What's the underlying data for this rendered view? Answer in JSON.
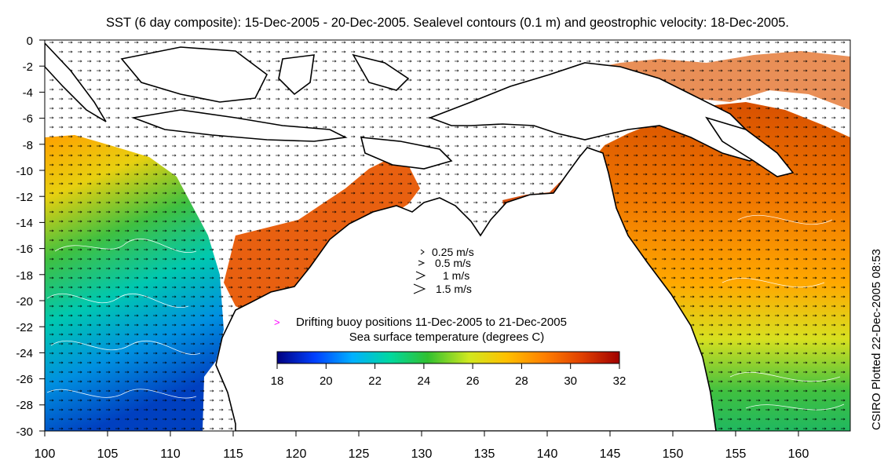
{
  "title": "SST (6 day composite): 15-Dec-2005 - 20-Dec-2005. Sealevel contours (0.1 m) and geostrophic velocity: 18-Dec-2005.",
  "side_label": "CSIRO Plotted 22-Dec-2005 08:53",
  "map": {
    "lon_range": [
      100,
      164
    ],
    "lat_range": [
      -30,
      0
    ],
    "x_ticks": [
      "100",
      "105",
      "110",
      "115",
      "120",
      "125",
      "130",
      "135",
      "140",
      "145",
      "150",
      "155",
      "160"
    ],
    "y_ticks": [
      "0",
      "-2",
      "-4",
      "-6",
      "-8",
      "-10",
      "-12",
      "-14",
      "-16",
      "-18",
      "-20",
      "-22",
      "-24",
      "-26",
      "-28",
      "-30"
    ]
  },
  "velocity_legend": {
    "items": [
      {
        "label": "0.25 m/s",
        "speed": 0.25
      },
      {
        "label": "0.5 m/s",
        "speed": 0.5
      },
      {
        "label": "1 m/s",
        "speed": 1
      },
      {
        "label": "1.5 m/s",
        "speed": 1.5
      }
    ]
  },
  "buoy_legend": {
    "symbol": ">",
    "label": "Drifting buoy positions 11-Dec-2005 to 21-Dec-2005",
    "color": "#ff00ff"
  },
  "colorbar": {
    "title": "Sea surface temperature (degrees C)",
    "range": [
      18,
      32
    ],
    "ticks": [
      "18",
      "20",
      "22",
      "24",
      "26",
      "28",
      "30",
      "32"
    ],
    "colors": [
      "#00007f",
      "#0040ff",
      "#00b0ff",
      "#00d8a0",
      "#30c030",
      "#d0e820",
      "#ffc000",
      "#ff8000",
      "#e04000",
      "#a00000"
    ]
  },
  "colors": {
    "land": "#ffffff",
    "coast": "#000000",
    "contour": "#ffffff",
    "buoy": "#ff00ff"
  }
}
